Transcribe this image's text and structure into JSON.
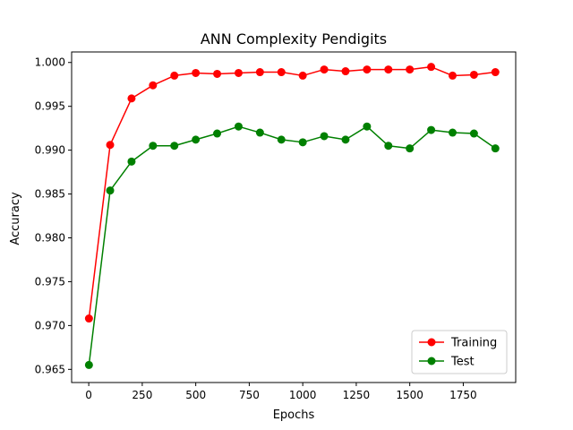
{
  "chart_data": {
    "type": "line",
    "title": "ANN Complexity Pendigits",
    "xlabel": "Epochs",
    "ylabel": "Accuracy",
    "xlim": [
      -80,
      1995
    ],
    "ylim": [
      0.9635,
      1.0012
    ],
    "xticks": [
      0,
      250,
      500,
      750,
      1000,
      1250,
      1500,
      1750
    ],
    "xtick_labels": [
      "0",
      "250",
      "500",
      "750",
      "1000",
      "1250",
      "1500",
      "1750"
    ],
    "yticks": [
      0.965,
      0.97,
      0.975,
      0.98,
      0.985,
      0.99,
      0.995,
      1.0
    ],
    "ytick_labels": [
      "0.965",
      "0.970",
      "0.975",
      "0.980",
      "0.985",
      "0.990",
      "0.995",
      "1.000"
    ],
    "grid": false,
    "legend_position": "bottom-right",
    "x": [
      1,
      100,
      200,
      300,
      400,
      500,
      600,
      700,
      800,
      900,
      1000,
      1100,
      1200,
      1300,
      1400,
      1500,
      1600,
      1700,
      1800,
      1900
    ],
    "series": [
      {
        "name": "Training",
        "color": "#ff0000",
        "marker": "circle",
        "values": [
          0.9708,
          0.9906,
          0.9959,
          0.9974,
          0.9985,
          0.9988,
          0.9987,
          0.9988,
          0.9989,
          0.9989,
          0.9985,
          0.9992,
          0.999,
          0.9992,
          0.9992,
          0.9992,
          0.9995,
          0.9985,
          0.9986,
          0.9989
        ]
      },
      {
        "name": "Test",
        "color": "#008000",
        "marker": "circle",
        "values": [
          0.9655,
          0.9854,
          0.9887,
          0.9905,
          0.9905,
          0.9912,
          0.9919,
          0.9927,
          0.992,
          0.9912,
          0.9909,
          0.9916,
          0.9912,
          0.9927,
          0.9905,
          0.9902,
          0.9923,
          0.992,
          0.9919,
          0.9902
        ]
      }
    ]
  }
}
